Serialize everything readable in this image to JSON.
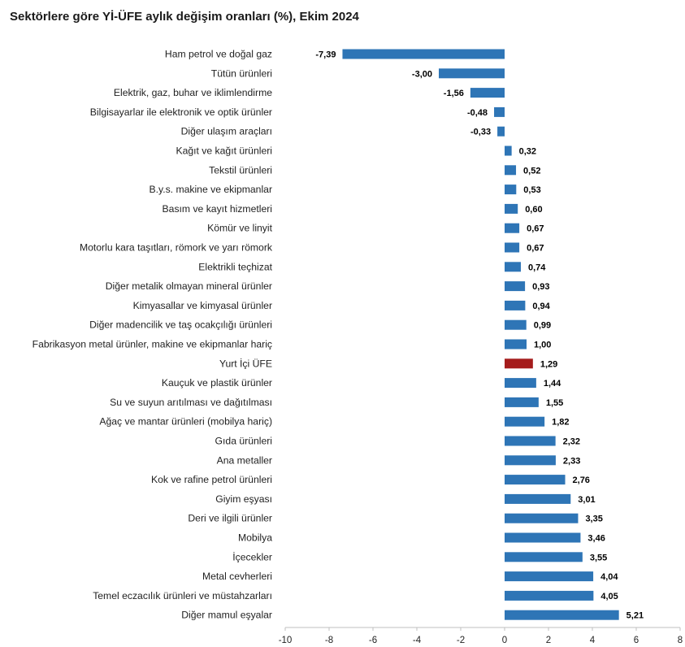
{
  "title": "Sektörlere göre Yİ-ÜFE aylık değişim oranları (%), Ekim 2024",
  "colors": {
    "bar": "#2e75b6",
    "highlight": "#a51c1c",
    "axis": "#bfbfbf"
  },
  "chart_data": {
    "type": "bar",
    "orientation": "horizontal",
    "title": "Sektörlere göre Yİ-ÜFE aylık değişim oranları (%), Ekim 2024",
    "xlabel": "",
    "ylabel": "",
    "xlim": [
      -10,
      8
    ],
    "xticks": [
      -10,
      -8,
      -6,
      -4,
      -2,
      0,
      2,
      4,
      6,
      8
    ],
    "grid": false,
    "legend": "none",
    "highlight": "Yurt İçi ÜFE",
    "categories": [
      "Ham petrol ve doğal gaz",
      "Tütün ürünleri",
      "Elektrik, gaz, buhar ve iklimlendirme",
      "Bilgisayarlar ile elektronik ve optik ürünler",
      "Diğer ulaşım araçları",
      "Kağıt ve kağıt ürünleri",
      "Tekstil ürünleri",
      "B.y.s. makine ve ekipmanlar",
      "Basım ve kayıt hizmetleri",
      "Kömür ve linyit",
      "Motorlu kara taşıtları, römork ve yarı römork",
      "Elektrikli teçhizat",
      "Diğer metalik olmayan mineral ürünler",
      "Kimyasallar ve kimyasal ürünler",
      "Diğer madencilik ve taş ocakçılığı ürünleri",
      "Fabrikasyon metal ürünler, makine ve ekipmanlar hariç",
      "Yurt İçi ÜFE",
      "Kauçuk ve plastik ürünler",
      "Su ve suyun arıtılması ve dağıtılması",
      "Ağaç ve mantar ürünleri (mobilya hariç)",
      "Gıda ürünleri",
      "Ana metaller",
      "Kok ve rafine petrol ürünleri",
      "Giyim eşyası",
      "Deri ve ilgili ürünler",
      "Mobilya",
      "İçecekler",
      "Metal cevherleri",
      "Temel eczacılık ürünleri ve müstahzarları",
      "Diğer mamul eşyalar"
    ],
    "values": [
      -7.39,
      -3.0,
      -1.56,
      -0.48,
      -0.33,
      0.32,
      0.52,
      0.53,
      0.6,
      0.67,
      0.67,
      0.74,
      0.93,
      0.94,
      0.99,
      1.0,
      1.29,
      1.44,
      1.55,
      1.82,
      2.32,
      2.33,
      2.76,
      3.01,
      3.35,
      3.46,
      3.55,
      4.04,
      4.05,
      5.21
    ],
    "value_labels": [
      "-7,39",
      "-3,00",
      "-1,56",
      "-0,48",
      "-0,33",
      "0,32",
      "0,52",
      "0,53",
      "0,60",
      "0,67",
      "0,67",
      "0,74",
      "0,93",
      "0,94",
      "0,99",
      "1,00",
      "1,29",
      "1,44",
      "1,55",
      "1,82",
      "2,32",
      "2,33",
      "2,76",
      "3,01",
      "3,35",
      "3,46",
      "3,55",
      "4,04",
      "4,05",
      "5,21"
    ]
  }
}
